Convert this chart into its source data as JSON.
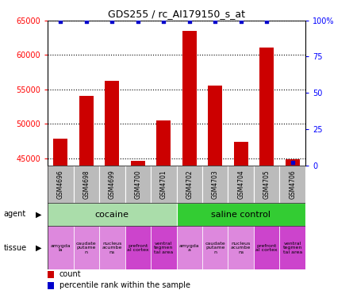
{
  "title": "GDS255 / rc_AI179150_s_at",
  "samples": [
    "GSM4696",
    "GSM4698",
    "GSM4699",
    "GSM4700",
    "GSM4701",
    "GSM4702",
    "GSM4703",
    "GSM4704",
    "GSM4705",
    "GSM4706"
  ],
  "counts": [
    47900,
    54000,
    56200,
    44700,
    50500,
    63500,
    55500,
    47400,
    61000,
    44900
  ],
  "percentile_vals": [
    99,
    99,
    99,
    99,
    99,
    99,
    99,
    99,
    99,
    2
  ],
  "ylim_left": [
    44000,
    65000
  ],
  "ylim_right": [
    0,
    100
  ],
  "bar_color": "#cc0000",
  "percentile_color": "#0000cc",
  "agent_groups": [
    {
      "label": "cocaine",
      "start": 0,
      "end": 4,
      "color": "#aaddaa"
    },
    {
      "label": "saline control",
      "start": 5,
      "end": 9,
      "color": "#33cc33"
    }
  ],
  "tissue_labels": [
    "amygda\nla",
    "caudate\nputame\nn",
    "nucleus\nacumbe\nns",
    "prefront\nal cortex",
    "ventral\ntegmen\ntal area",
    "amygda\na",
    "caudate\nputame\nn",
    "nucleus\nacumbe\nns",
    "prefront\nal cortex",
    "ventral\ntegmen\ntal area"
  ],
  "tissue_colors": [
    "#dd88dd",
    "#dd88dd",
    "#dd88dd",
    "#cc44cc",
    "#cc44cc",
    "#dd88dd",
    "#dd88dd",
    "#dd88dd",
    "#cc44cc",
    "#cc44cc"
  ],
  "yticks_left": [
    45000,
    50000,
    55000,
    60000,
    65000
  ],
  "yticks_right": [
    0,
    25,
    50,
    75,
    100
  ],
  "header_bg": "#bbbbbb"
}
